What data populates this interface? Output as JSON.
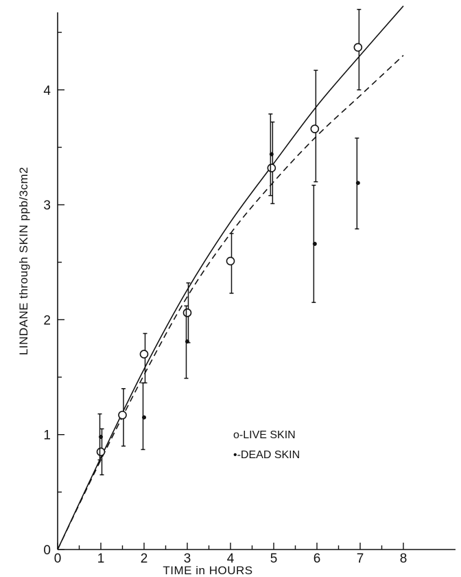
{
  "chart_data": {
    "type": "scatter",
    "title": "",
    "xlabel": "TIME in HOURS",
    "ylabel": "LINDANE through SKIN ppb/3cm2",
    "xlim": [
      0,
      8
    ],
    "ylim": [
      0,
      4.6
    ],
    "x_ticks": [
      "0",
      "1",
      "2",
      "3",
      "4",
      "5",
      "6",
      "7",
      "8"
    ],
    "y_ticks": [
      "0",
      "1",
      "2",
      "3",
      "4"
    ],
    "grid": false,
    "legend_position": "center",
    "series": [
      {
        "name": "LIVE SKIN",
        "marker": "open-circle",
        "points": [
          {
            "x": 1.0,
            "y": 0.85,
            "err_low": 0.65,
            "err_high": 1.05
          },
          {
            "x": 1.5,
            "y": 1.17,
            "err_low": 0.9,
            "err_high": 1.4
          },
          {
            "x": 2.0,
            "y": 1.7,
            "err_low": 1.45,
            "err_high": 1.88
          },
          {
            "x": 3.0,
            "y": 2.06,
            "err_low": 1.8,
            "err_high": 2.32
          },
          {
            "x": 4.0,
            "y": 2.51,
            "err_low": 2.23,
            "err_high": 2.75
          },
          {
            "x": 4.95,
            "y": 3.32,
            "err_low": 3.01,
            "err_high": 3.72
          },
          {
            "x": 5.95,
            "y": 3.66,
            "err_low": 3.2,
            "err_high": 4.17
          },
          {
            "x": 6.95,
            "y": 4.37,
            "err_low": 4.0,
            "err_high": 4.7
          }
        ],
        "fit_line": {
          "style": "solid",
          "x": [
            0,
            1,
            2,
            3,
            4,
            5,
            6,
            7,
            8
          ],
          "y": [
            0,
            0.8,
            1.57,
            2.26,
            2.85,
            3.36,
            3.86,
            4.3,
            4.73
          ]
        }
      },
      {
        "name": "DEAD SKIN",
        "marker": "dot",
        "points": [
          {
            "x": 1.0,
            "y": 0.98,
            "err_low": 0.78,
            "err_high": 1.18
          },
          {
            "x": 2.0,
            "y": 1.15,
            "err_low": 0.87,
            "err_high": 1.45
          },
          {
            "x": 3.0,
            "y": 1.81,
            "err_low": 1.49,
            "err_high": 2.12
          },
          {
            "x": 4.95,
            "y": 3.44,
            "err_low": 3.08,
            "err_high": 3.79
          },
          {
            "x": 5.95,
            "y": 2.66,
            "err_low": 2.15,
            "err_high": 3.17
          },
          {
            "x": 6.95,
            "y": 3.19,
            "err_low": 2.79,
            "err_high": 3.58
          }
        ],
        "fit_line": {
          "style": "dashed",
          "x": [
            0,
            1,
            2,
            3,
            4,
            5,
            6,
            7,
            8
          ],
          "y": [
            0,
            0.78,
            1.52,
            2.2,
            2.75,
            3.2,
            3.6,
            3.95,
            4.3
          ]
        }
      }
    ],
    "legend": [
      {
        "marker": "o-",
        "label": "LIVE SKIN"
      },
      {
        "marker": "•-",
        "label": "DEAD SKIN"
      }
    ]
  }
}
